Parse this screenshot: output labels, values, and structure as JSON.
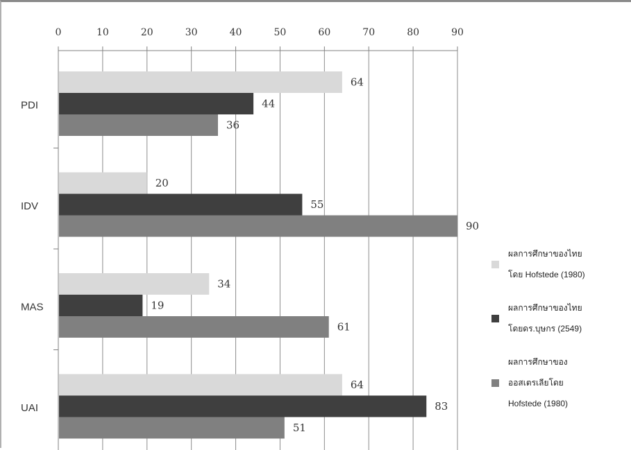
{
  "chart_data": {
    "type": "bar",
    "orientation": "horizontal",
    "categories": [
      "PDI",
      "IDV",
      "MAS",
      "UAI"
    ],
    "x_ticks": [
      "0",
      "10",
      "20",
      "30",
      "40",
      "50",
      "60",
      "70",
      "80",
      "90"
    ],
    "xlim": [
      0,
      90
    ],
    "grid": true,
    "legend_position": "right",
    "series": [
      {
        "name": "ผลการศึกษาของไทย\nโดย Hofstede (1980)",
        "values": [
          64,
          20,
          34,
          64
        ],
        "color": "#d9d9d9"
      },
      {
        "name": "ผลการศึกษาของไทย\nโดยดร.บุษกร (2549)",
        "values": [
          44,
          55,
          19,
          83
        ],
        "color": "#3f3f3f"
      },
      {
        "name": "ผลการศึกษาของ\nออสเตรเลียโดย\nHofstede (1980)",
        "values": [
          36,
          90,
          61,
          51
        ],
        "color": "#808080"
      }
    ]
  }
}
